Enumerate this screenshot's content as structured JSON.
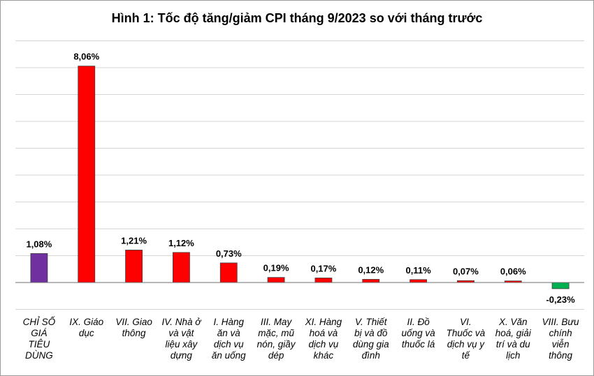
{
  "chart_data": {
    "type": "bar",
    "title": "Hình 1: Tốc độ tăng/giảm CPI tháng 9/2023 so với tháng trước",
    "xlabel": "",
    "ylabel": "",
    "ylim": [
      -1,
      9
    ],
    "grid": true,
    "categories": [
      "CHỈ SỐ GIÁ TIÊU DÙNG",
      "IX. Giáo dục",
      "VII. Giao thông",
      "IV. Nhà ở và vật liệu xây dựng",
      "I. Hàng ăn và dịch vụ ăn uống",
      "III. May mặc, mũ nón, giầy dép",
      "XI. Hàng hoá và dịch vụ khác",
      "V. Thiết bị và đồ dùng gia đình",
      "II. Đồ uống và thuốc lá",
      "VI. Thuốc và dịch vụ y tế",
      "X. Văn hoá, giải trí và du lịch",
      "VIII. Bưu chính viễn thông"
    ],
    "category_lines": [
      [
        "CHỈ SỐ",
        "GIÁ",
        "TIÊU",
        "DÙNG"
      ],
      [
        "IX. Giáo",
        "dục"
      ],
      [
        "VII. Giao",
        "thông"
      ],
      [
        "IV. Nhà ở",
        "và vật",
        "liệu xây",
        "dựng"
      ],
      [
        "I. Hàng",
        "ăn và",
        "dịch vụ",
        "ăn uống"
      ],
      [
        "III. May",
        "mặc, mũ",
        "nón, giầy",
        "dép"
      ],
      [
        "XI. Hàng",
        "hoá và",
        "dịch vụ",
        "khác"
      ],
      [
        "V. Thiết",
        "bị và đồ",
        "dùng gia",
        "đình"
      ],
      [
        "II. Đồ",
        "uống và",
        "thuốc lá"
      ],
      [
        "VI.",
        "Thuốc và",
        "dịch vụ y",
        "tế"
      ],
      [
        "X. Văn",
        "hoá, giải",
        "trí và du",
        "lịch"
      ],
      [
        "VIII. Bưu",
        "chính",
        "viễn",
        "thông"
      ]
    ],
    "values": [
      1.08,
      8.06,
      1.21,
      1.12,
      0.73,
      0.19,
      0.17,
      0.12,
      0.11,
      0.07,
      0.06,
      -0.23
    ],
    "value_labels": [
      "1,08%",
      "8,06%",
      "1,21%",
      "1,12%",
      "0,73%",
      "0,19%",
      "0,17%",
      "0,12%",
      "0,11%",
      "0,07%",
      "0,06%",
      "-0,23%"
    ],
    "colors": [
      "#7030a0",
      "#ff0000",
      "#ff0000",
      "#ff0000",
      "#ff0000",
      "#ff0000",
      "#ff0000",
      "#ff0000",
      "#ff0000",
      "#ff0000",
      "#ff0000",
      "#00b050"
    ]
  }
}
